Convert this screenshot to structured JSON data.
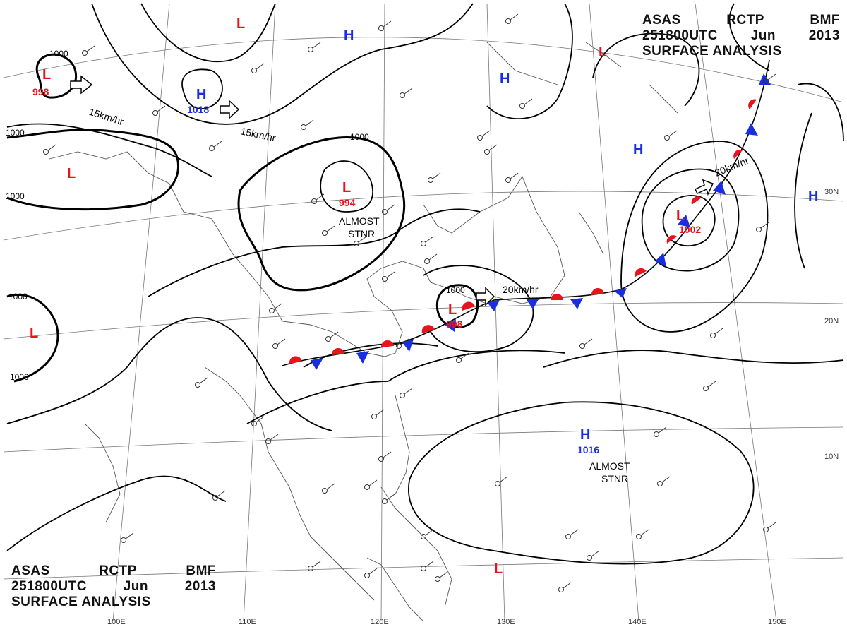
{
  "header": {
    "line1": [
      "ASAS",
      "RCTP",
      "BMF"
    ],
    "line2": [
      "251800UTC",
      "Jun",
      "2013"
    ],
    "line3": "SURFACE ANALYSIS"
  },
  "longitude_labels": [
    "100E",
    "110E",
    "120E",
    "130E",
    "140E",
    "150E"
  ],
  "latitude_labels": [
    "30N",
    "20N",
    "10N"
  ],
  "isobar_labels": [
    "1000",
    "1000",
    "1000",
    "1000",
    "1000",
    "1000",
    "1000"
  ],
  "pressure_centers": [
    {
      "type": "L",
      "value": "998"
    },
    {
      "type": "L",
      "value": ""
    },
    {
      "type": "L",
      "value": ""
    },
    {
      "type": "L",
      "value": ""
    },
    {
      "type": "L",
      "value": "994"
    },
    {
      "type": "L",
      "value": "998"
    },
    {
      "type": "L",
      "value": "1002"
    },
    {
      "type": "L",
      "value": ""
    },
    {
      "type": "L",
      "value": ""
    },
    {
      "type": "H",
      "value": "1018"
    },
    {
      "type": "H",
      "value": ""
    },
    {
      "type": "H",
      "value": ""
    },
    {
      "type": "H",
      "value": ""
    },
    {
      "type": "H",
      "value": ""
    },
    {
      "type": "H",
      "value": "1016"
    }
  ],
  "motion_labels": [
    "15km/hr",
    "15km/hr",
    "20km/hr",
    "20km/hr"
  ],
  "stationary_notes": [
    {
      "line1": "ALMOST",
      "line2": "STNR"
    },
    {
      "line1": "ALMOST",
      "line2": "STNR"
    }
  ],
  "colors": {
    "low": "#e8141c",
    "high": "#1a2ee0",
    "isobar": "#000000",
    "geography": "#555555",
    "station": "#333333"
  }
}
